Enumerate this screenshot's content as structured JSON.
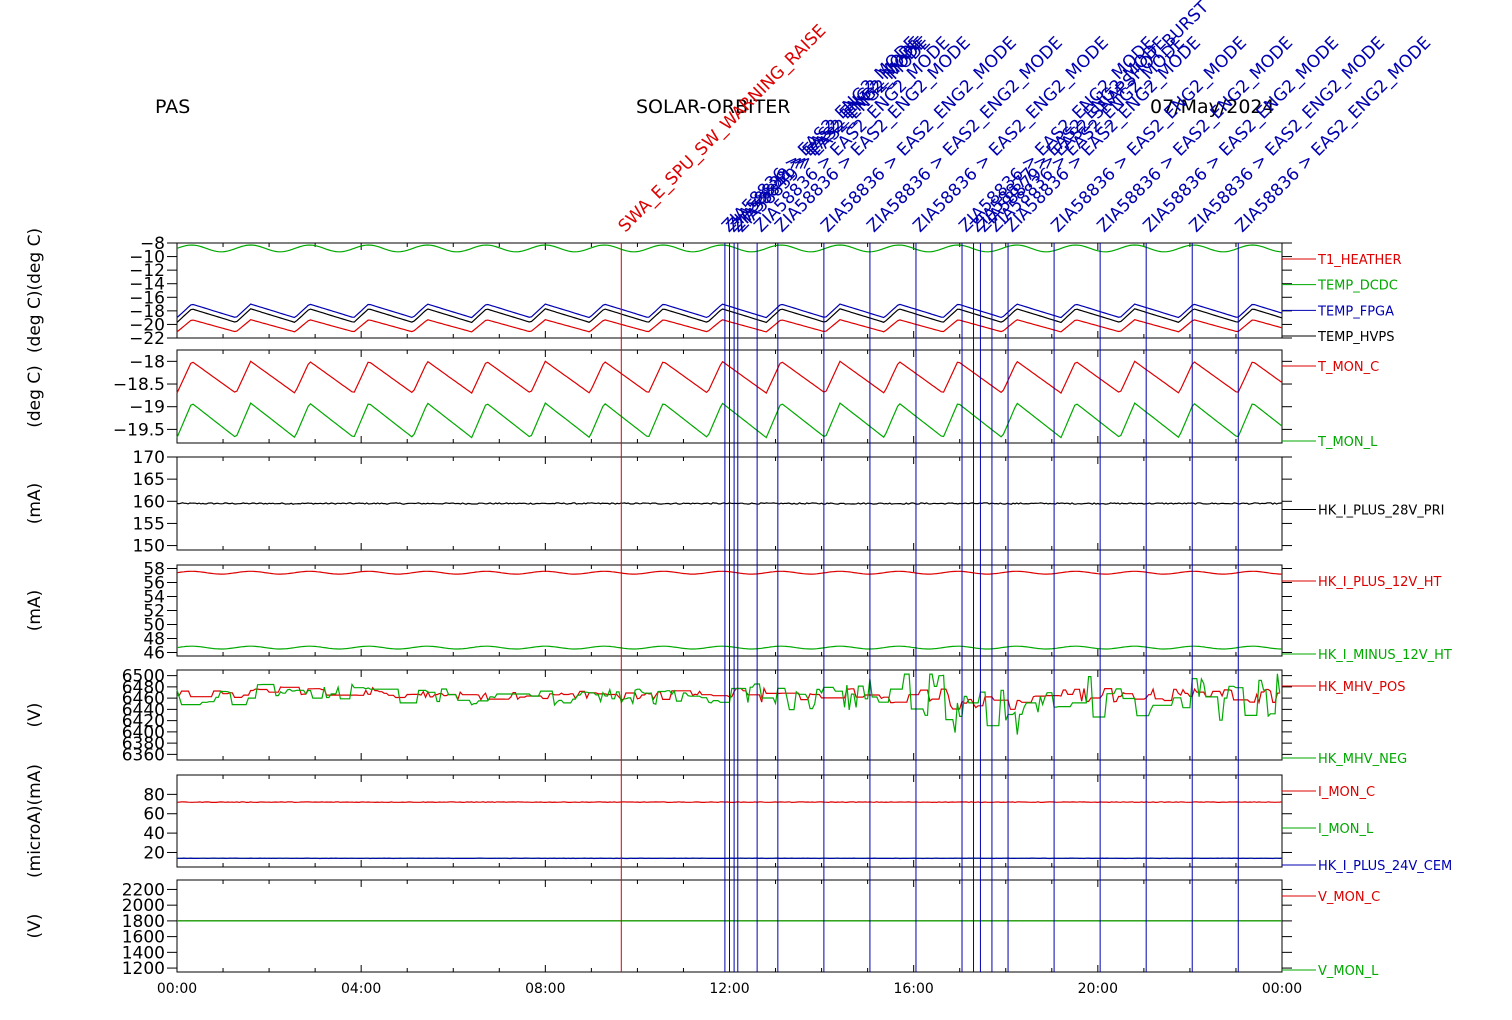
{
  "header": {
    "left": "PAS",
    "center": "SOLAR-ORBITER",
    "right": "07/May/2024"
  },
  "colors": {
    "red": "#dd0000",
    "green": "#00a800",
    "blue": "#0000b0",
    "black": "#000000"
  },
  "events": [
    {
      "label": "SWA_E_SPU_SW_WARNING_RAISE",
      "t": 9.65,
      "color": "red"
    },
    {
      "label": "ZIA58836 > EAS2_ENG2_MODE",
      "t": 11.9,
      "color": "blue"
    },
    {
      "label": "ZIA58838 > EAS2_ENG2_MODE",
      "t": 12.0,
      "color": "blue"
    },
    {
      "label": "ZIA58841 > EAS2_ENG2_MODE",
      "t": 12.1,
      "color": "blue"
    },
    {
      "label": "ZIA58839 > EAS2_ENG2_MODE",
      "t": 12.18,
      "color": "blue"
    },
    {
      "label": "ZIA58836 > EAS2_ENG2_MODE",
      "t": 12.6,
      "color": "blue"
    },
    {
      "label": "ZIA58836 > EAS2_ENG2_MODE",
      "t": 13.05,
      "color": "blue"
    },
    {
      "label": "ZIA58836 > EAS2_ENG2_MODE",
      "t": 14.05,
      "color": "blue"
    },
    {
      "label": "ZIA58836 > EAS2_ENG2_MODE",
      "t": 15.05,
      "color": "blue"
    },
    {
      "label": "ZIA58836 > EAS2_ENG2_MODE",
      "t": 16.05,
      "color": "blue"
    },
    {
      "label": "ZIA58836 > EAS2_ENG2_MODE",
      "t": 17.05,
      "color": "blue"
    },
    {
      "label": "ZIA58877 > EAS2_ENG2_MODE",
      "t": 17.3,
      "color": "blue"
    },
    {
      "label": "ZIA58879 > EAS2_SNAPSHOT_BURST",
      "t": 17.45,
      "color": "blue"
    },
    {
      "label": "ZIA58836 > EAS2_ENG2_MODE",
      "t": 17.7,
      "color": "blue"
    },
    {
      "label": "ZIA58836 > EAS2_ENG2_MODE",
      "t": 18.05,
      "color": "blue"
    },
    {
      "label": "ZIA58836 > EAS2_ENG2_MODE",
      "t": 19.05,
      "color": "blue"
    },
    {
      "label": "ZIA58836 > EAS2_ENG2_MODE",
      "t": 20.05,
      "color": "blue"
    },
    {
      "label": "ZIA58836 > EAS2_ENG2_MODE",
      "t": 21.05,
      "color": "blue"
    },
    {
      "label": "ZIA58836 > EAS2_ENG2_MODE",
      "t": 22.05,
      "color": "blue"
    },
    {
      "label": "ZIA58836 > EAS2_ENG2_MODE",
      "t": 23.05,
      "color": "blue"
    }
  ],
  "chart_data": [
    {
      "type": "line",
      "ylabel": "(deg C)(deg C)",
      "ylim": [
        -22,
        -8
      ],
      "yticks": [
        -22,
        -20,
        -18,
        -16,
        -14,
        -12,
        -10,
        -8
      ],
      "series": [
        {
          "name": "T1_HEATHER",
          "color": "red",
          "mean": -20.2,
          "amp": 0.9,
          "shape": "saw",
          "period": 1.28
        },
        {
          "name": "TEMP_DCDC",
          "color": "green",
          "mean": -8.8,
          "amp": 0.5,
          "shape": "sine",
          "period": 1.28
        },
        {
          "name": "TEMP_FPGA",
          "color": "blue",
          "mean": -18.0,
          "amp": 1.0,
          "shape": "saw",
          "period": 1.28
        },
        {
          "name": "TEMP_HVPS",
          "color": "black",
          "mean": -18.7,
          "amp": 1.0,
          "shape": "saw",
          "period": 1.28
        }
      ]
    },
    {
      "type": "line",
      "ylabel": "(deg C)",
      "ylim": [
        -19.8,
        -17.75
      ],
      "yticks": [
        -19.5,
        -19.0,
        -18.5,
        -18.0
      ],
      "series": [
        {
          "name": "T_MON_C",
          "color": "red",
          "mean": -18.35,
          "amp": 0.35,
          "shape": "saw",
          "period": 1.28
        },
        {
          "name": "T_MON_L",
          "color": "green",
          "mean": -19.3,
          "amp": 0.38,
          "shape": "saw",
          "period": 1.28
        }
      ]
    },
    {
      "type": "line",
      "ylabel": "(mA)",
      "ylim": [
        149,
        170
      ],
      "yticks": [
        150,
        155,
        160,
        165,
        170
      ],
      "series": [
        {
          "name": "HK_I_PLUS_28V_PRI",
          "color": "black",
          "mean": 159.5,
          "amp": 0.15,
          "shape": "noise",
          "period": 1
        }
      ]
    },
    {
      "type": "line",
      "ylabel": "(mA)",
      "ylim": [
        45.5,
        58.5
      ],
      "yticks": [
        46,
        48,
        50,
        52,
        54,
        56,
        58
      ],
      "series": [
        {
          "name": "HK_I_PLUS_12V_HT",
          "color": "red",
          "mean": 57.4,
          "amp": 0.2,
          "shape": "sine",
          "period": 1.28
        },
        {
          "name": "HK_I_MINUS_12V_HT",
          "color": "green",
          "mean": 46.7,
          "amp": 0.2,
          "shape": "sine",
          "period": 1.28
        }
      ]
    },
    {
      "type": "line",
      "ylabel": "(V)",
      "ylim": [
        6350,
        6510
      ],
      "yticks": [
        6360,
        6380,
        6400,
        6420,
        6440,
        6460,
        6480,
        6500
      ],
      "series": [
        {
          "name": "HK_MHV_POS",
          "color": "red",
          "mean": 6465,
          "amp": 10,
          "shape": "steps",
          "period": 1
        },
        {
          "name": "HK_MHV_NEG",
          "color": "green",
          "mean": 6462,
          "amp": 18,
          "shape": "steps",
          "period": 1
        }
      ]
    },
    {
      "type": "line",
      "ylabel": "(microA)(mA)",
      "ylim": [
        5,
        100
      ],
      "yticks": [
        20,
        40,
        60,
        80
      ],
      "series": [
        {
          "name": "I_MON_C",
          "color": "red",
          "mean": 72,
          "amp": 0.3,
          "shape": "flat",
          "period": 1
        },
        {
          "name": "I_MON_L",
          "color": "green",
          "mean": 14,
          "amp": 0,
          "shape": "flat",
          "period": 1
        },
        {
          "name": "HK_I_PLUS_24V_CEM",
          "color": "blue",
          "mean": 14,
          "amp": 0.2,
          "shape": "flat",
          "period": 1
        }
      ]
    },
    {
      "type": "line",
      "ylabel": "(V)",
      "ylim": [
        1150,
        2320
      ],
      "yticks": [
        1200,
        1400,
        1600,
        1800,
        2000,
        2200
      ],
      "series": [
        {
          "name": "V_MON_C",
          "color": "red",
          "mean": 1800,
          "amp": 0,
          "shape": "flat",
          "period": 1
        },
        {
          "name": "V_MON_L",
          "color": "green",
          "mean": 1800,
          "amp": 0,
          "shape": "flat",
          "period": 1
        }
      ]
    }
  ],
  "xaxis": {
    "ticklabels": [
      "00:00",
      "04:00",
      "08:00",
      "12:00",
      "16:00",
      "20:00",
      "00:00"
    ],
    "range_hours": [
      0,
      24
    ]
  }
}
